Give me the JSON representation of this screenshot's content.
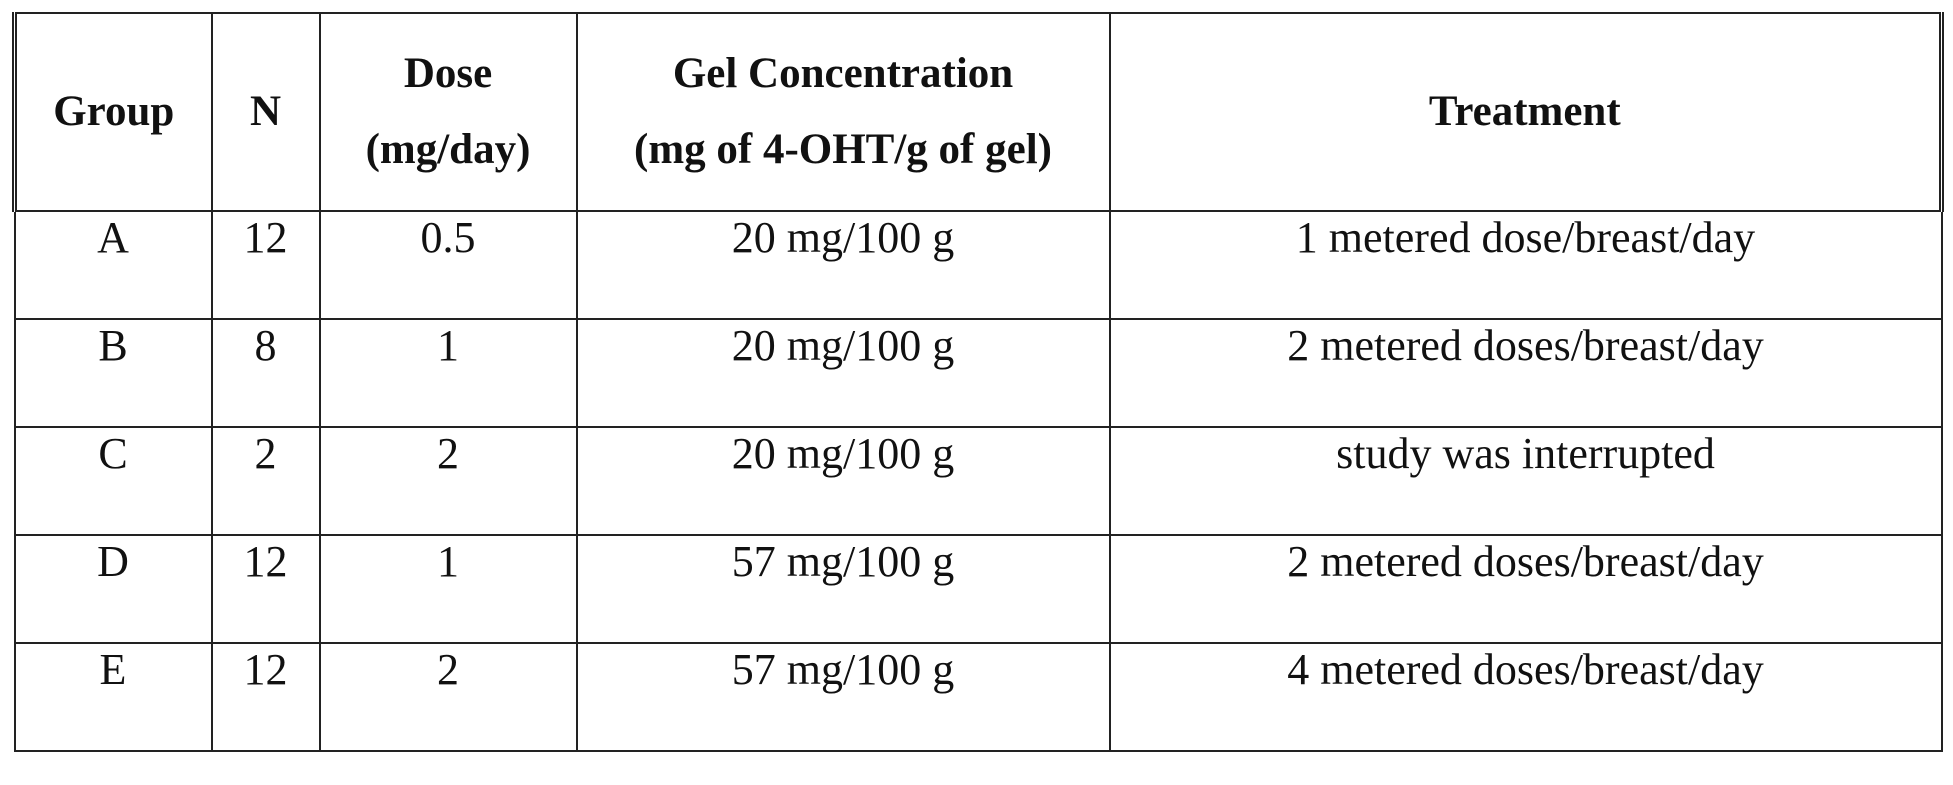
{
  "table": {
    "headers": [
      {
        "lines": [
          "Group"
        ]
      },
      {
        "lines": [
          "N"
        ]
      },
      {
        "lines": [
          "Dose",
          "(mg/day)"
        ]
      },
      {
        "lines": [
          "Gel Concentration",
          "(mg of 4-OHT/g of gel)"
        ]
      },
      {
        "lines": [
          "Treatment"
        ]
      }
    ],
    "rows": [
      {
        "group": "A",
        "n": "12",
        "dose": "0.5",
        "concentration": "20 mg/100 g",
        "treatment": "1 metered dose/breast/day"
      },
      {
        "group": "B",
        "n": "8",
        "dose": "1",
        "concentration": "20 mg/100 g",
        "treatment": "2 metered doses/breast/day"
      },
      {
        "group": "C",
        "n": "2",
        "dose": "2",
        "concentration": "20 mg/100 g",
        "treatment": "study was interrupted"
      },
      {
        "group": "D",
        "n": "12",
        "dose": "1",
        "concentration": "57 mg/100 g",
        "treatment": "2 metered doses/breast/day"
      },
      {
        "group": "E",
        "n": "12",
        "dose": "2",
        "concentration": "57 mg/100 g",
        "treatment": "4 metered doses/breast/day"
      }
    ]
  }
}
